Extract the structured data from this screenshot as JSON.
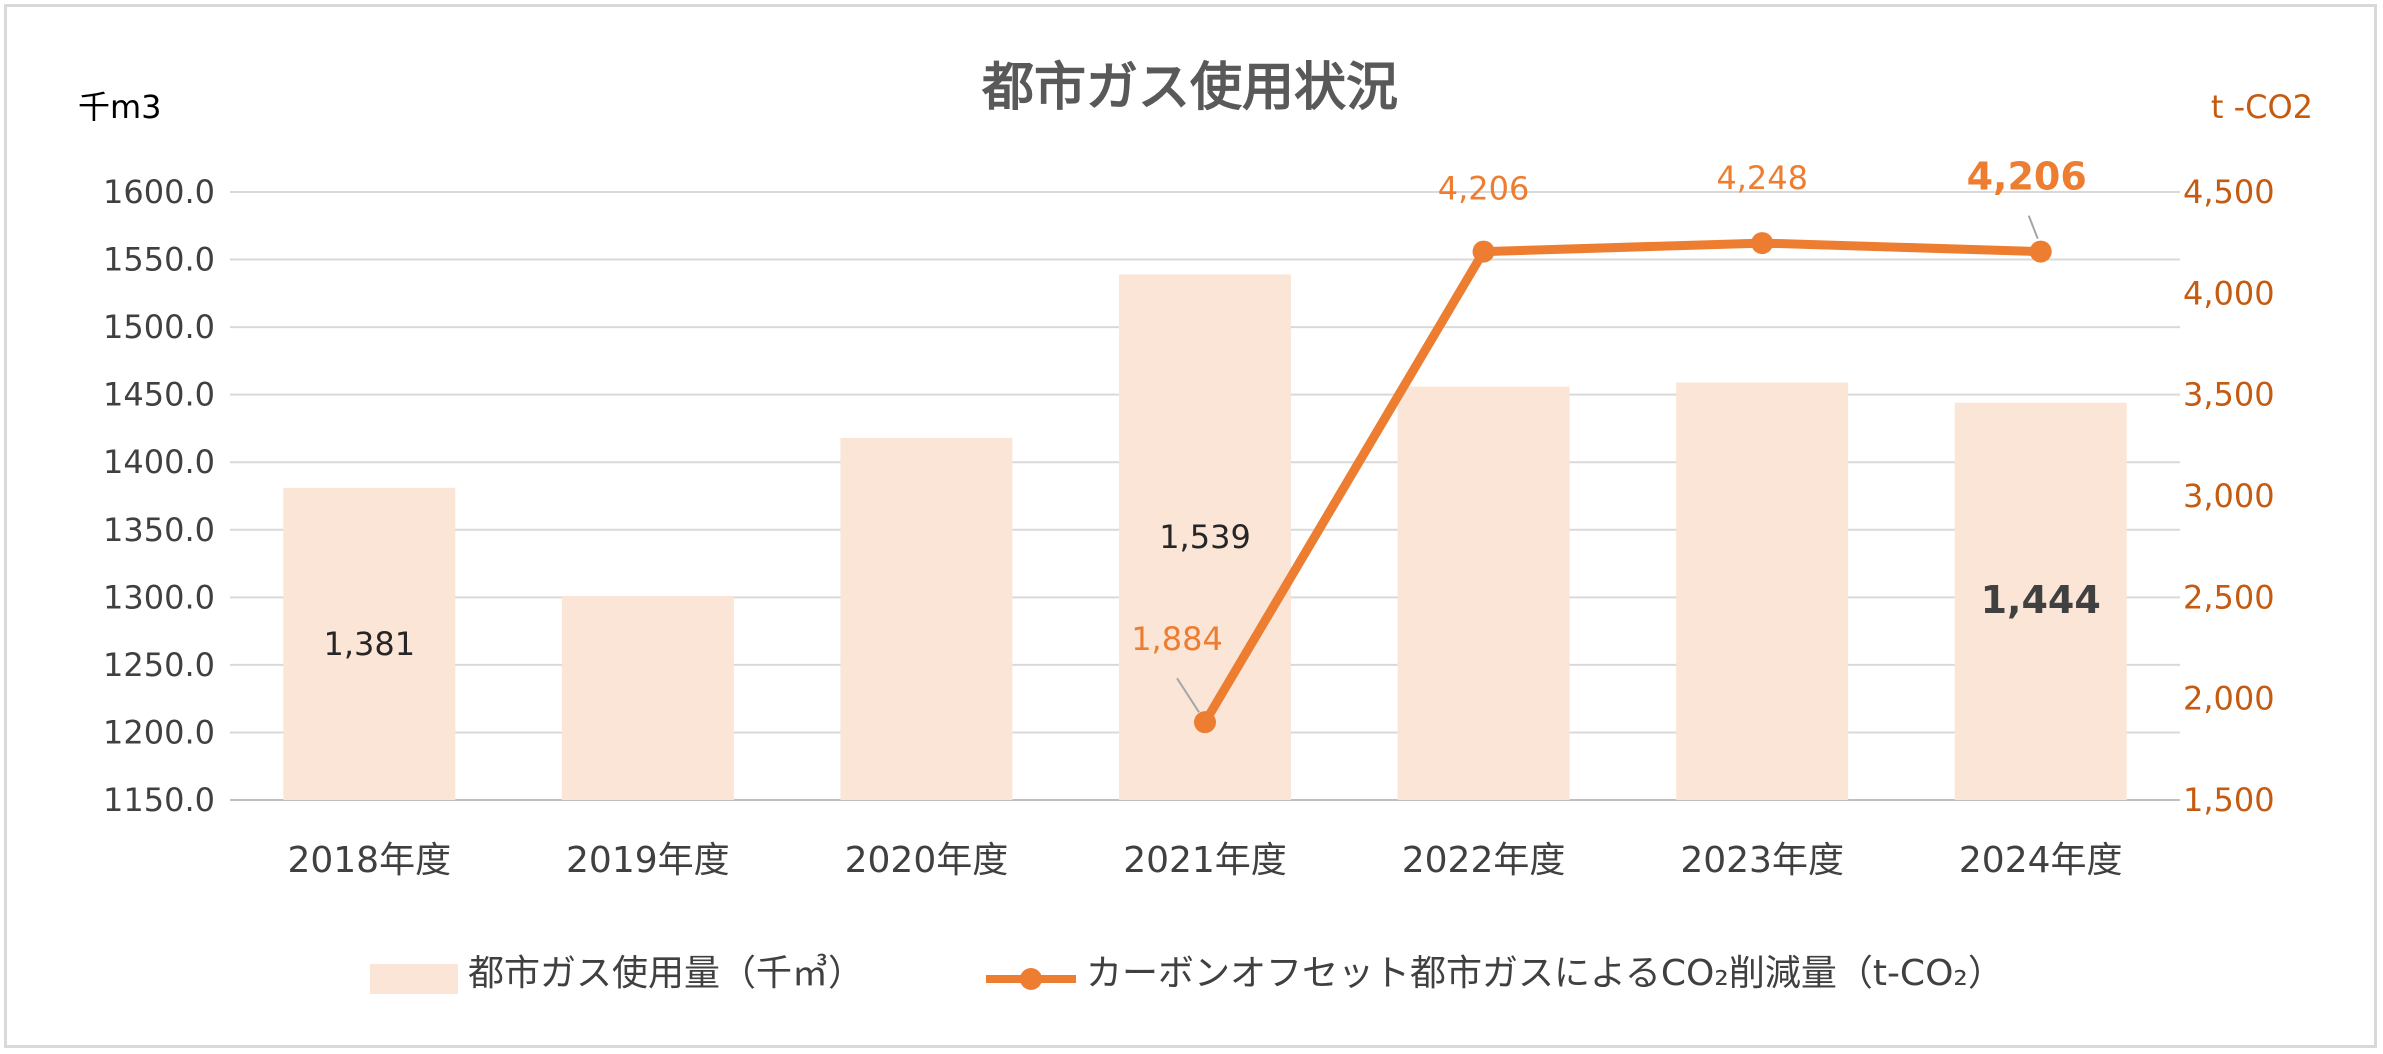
{
  "chart_data": {
    "type": "bar",
    "title": "都市ガス使用状況",
    "categories": [
      "2018年度",
      "2019年度",
      "2020年度",
      "2021年度",
      "2022年度",
      "2023年度",
      "2024年度"
    ],
    "y_left": {
      "unit_label": "千m3",
      "range": [
        1150,
        1600
      ],
      "ticks": [
        "1600.0",
        "1550.0",
        "1500.0",
        "1450.0",
        "1400.0",
        "1350.0",
        "1300.0",
        "1250.0",
        "1200.0",
        "1150.0"
      ]
    },
    "y_right": {
      "unit_label": "t -CO2",
      "range": [
        1500,
        4500
      ],
      "ticks": [
        "4,500",
        "4,000",
        "3,500",
        "3,000",
        "2,500",
        "2,000",
        "1,500"
      ]
    },
    "series": [
      {
        "name": "都市ガス使用量（千㎥）",
        "type": "bar",
        "axis": "left",
        "color": "#fbe5d6",
        "values": [
          1381,
          1301,
          1418,
          1539,
          1456,
          1459,
          1444
        ],
        "data_labels": [
          "1,381",
          "",
          "",
          "1,539",
          "",
          "",
          "1,444"
        ]
      },
      {
        "name": "カーボンオフセット都市ガスによるCO₂削減量（t-CO₂）",
        "type": "line",
        "axis": "right",
        "color": "#ed7d31",
        "values": [
          null,
          null,
          null,
          1884,
          4206,
          4248,
          4206
        ],
        "data_labels": [
          "",
          "",
          "",
          "1,884",
          "4,206",
          "4,248",
          "4,206"
        ]
      }
    ],
    "grid": true,
    "legend_position": "bottom"
  }
}
